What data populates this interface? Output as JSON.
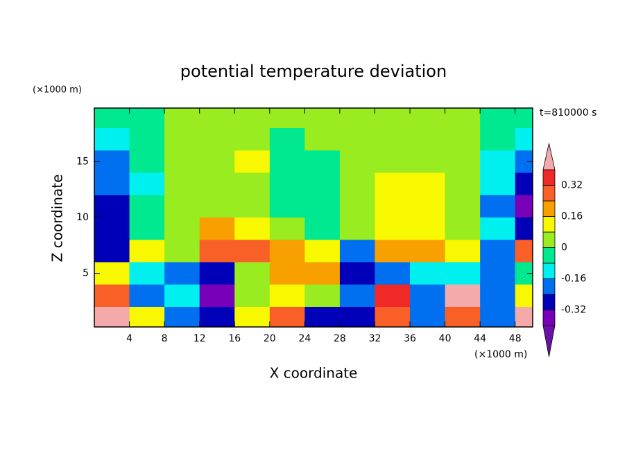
{
  "chart_data": {
    "type": "contour",
    "title": "potential temperature deviation",
    "xlabel": "X coordinate",
    "ylabel": "Z coordinate",
    "x_unit": "(×1000 m)",
    "y_unit": "(×1000 m)",
    "annotation": "t=810000 s",
    "xlim": [
      0,
      50
    ],
    "ylim": [
      0.2,
      19.8
    ],
    "xticks": [
      4,
      8,
      12,
      16,
      20,
      24,
      28,
      32,
      36,
      40,
      44,
      48
    ],
    "yticks": [
      5,
      10,
      15
    ],
    "x": [
      2,
      6,
      10,
      14,
      18,
      22,
      26,
      30,
      34,
      38,
      42,
      46,
      50
    ],
    "y": [
      19,
      17,
      15,
      13,
      11,
      9,
      7,
      5,
      3,
      1
    ],
    "z": [
      [
        -0.04,
        -0.02,
        0.02,
        0.03,
        0.03,
        0.03,
        0.02,
        0.03,
        0.03,
        0.03,
        0.02,
        -0.02,
        -0.04
      ],
      [
        -0.12,
        -0.04,
        0.03,
        0.03,
        0.02,
        -0.02,
        0.02,
        0.03,
        0.03,
        0.03,
        0.02,
        -0.06,
        -0.12
      ],
      [
        -0.2,
        -0.06,
        0.03,
        0.04,
        0.1,
        -0.03,
        -0.02,
        0.03,
        0.03,
        0.02,
        0.03,
        -0.1,
        -0.2
      ],
      [
        -0.22,
        -0.1,
        0.02,
        0.03,
        0.03,
        -0.04,
        -0.04,
        0.03,
        0.12,
        0.12,
        0.04,
        -0.14,
        -0.28
      ],
      [
        -0.25,
        -0.08,
        0.02,
        0.05,
        0.03,
        -0.04,
        -0.04,
        0.02,
        0.12,
        0.14,
        0.04,
        -0.18,
        -0.36
      ],
      [
        -0.28,
        -0.06,
        0.02,
        0.2,
        0.1,
        0.02,
        -0.04,
        0.01,
        0.1,
        0.12,
        0.03,
        -0.16,
        -0.3
      ],
      [
        -0.3,
        0.1,
        0.05,
        0.26,
        0.3,
        0.2,
        0.1,
        -0.2,
        0.2,
        0.2,
        0.1,
        -0.2,
        0.3
      ],
      [
        0.1,
        -0.14,
        -0.18,
        -0.32,
        0.0,
        0.18,
        0.2,
        -0.3,
        -0.2,
        -0.16,
        -0.12,
        -0.18,
        -0.06
      ],
      [
        0.3,
        -0.2,
        -0.12,
        -0.34,
        0.06,
        0.14,
        0.02,
        -0.2,
        0.32,
        -0.18,
        0.44,
        -0.2,
        0.1
      ],
      [
        0.42,
        0.1,
        -0.2,
        -0.3,
        0.1,
        0.3,
        -0.26,
        -0.3,
        0.24,
        -0.2,
        0.3,
        -0.24,
        0.44
      ]
    ],
    "levels": [
      -0.4,
      -0.32,
      -0.24,
      -0.16,
      -0.08,
      0,
      0.08,
      0.16,
      0.24,
      0.32,
      0.4
    ],
    "colors": [
      "#6a10a8",
      "#7800b8",
      "#0000b8",
      "#0070f0",
      "#00f0f0",
      "#00e890",
      "#98ec20",
      "#f8f800",
      "#f8a000",
      "#f86028",
      "#f02828",
      "#f4aaaa"
    ],
    "colorbar_ticks": [
      0.32,
      0.16,
      0,
      -0.16,
      -0.32
    ]
  }
}
